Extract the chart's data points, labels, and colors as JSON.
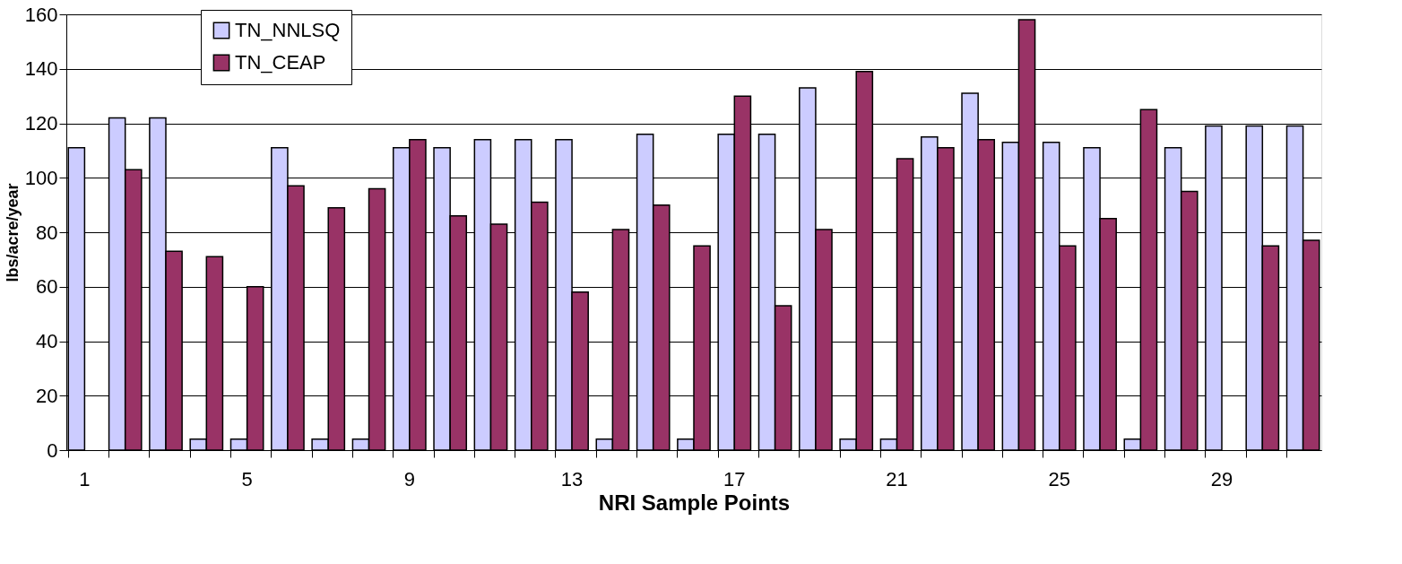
{
  "chart_data": {
    "type": "bar",
    "xlabel": "NRI Sample Points",
    "ylabel": "lbs/acre/year",
    "categories": [
      "1",
      null,
      null,
      null,
      "5",
      null,
      null,
      null,
      "9",
      null,
      null,
      null,
      "13",
      null,
      null,
      null,
      "17",
      null,
      null,
      null,
      "21",
      null,
      null,
      null,
      "25",
      null,
      null,
      null,
      "29",
      null,
      null
    ],
    "series": [
      {
        "name": "TN_NNLSQ",
        "color": "#ccccff",
        "values": [
          111,
          122,
          122,
          4,
          4,
          111,
          4,
          4,
          111,
          111,
          114,
          114,
          114,
          4,
          116,
          4,
          116,
          116,
          133,
          4,
          4,
          115,
          131,
          113,
          113,
          111,
          4,
          111,
          119,
          119,
          119
        ]
      },
      {
        "name": "TN_CEAP",
        "color": "#993366",
        "values": [
          null,
          103,
          73,
          71,
          60,
          97,
          89,
          96,
          114,
          86,
          83,
          91,
          58,
          81,
          90,
          75,
          130,
          53,
          81,
          139,
          107,
          111,
          114,
          158,
          75,
          85,
          125,
          95,
          null,
          75,
          77
        ]
      }
    ],
    "ylim": [
      0,
      160
    ],
    "yticks": [
      0,
      20,
      40,
      60,
      80,
      100,
      120,
      140,
      160
    ],
    "grid": "y",
    "legend": "top left"
  }
}
